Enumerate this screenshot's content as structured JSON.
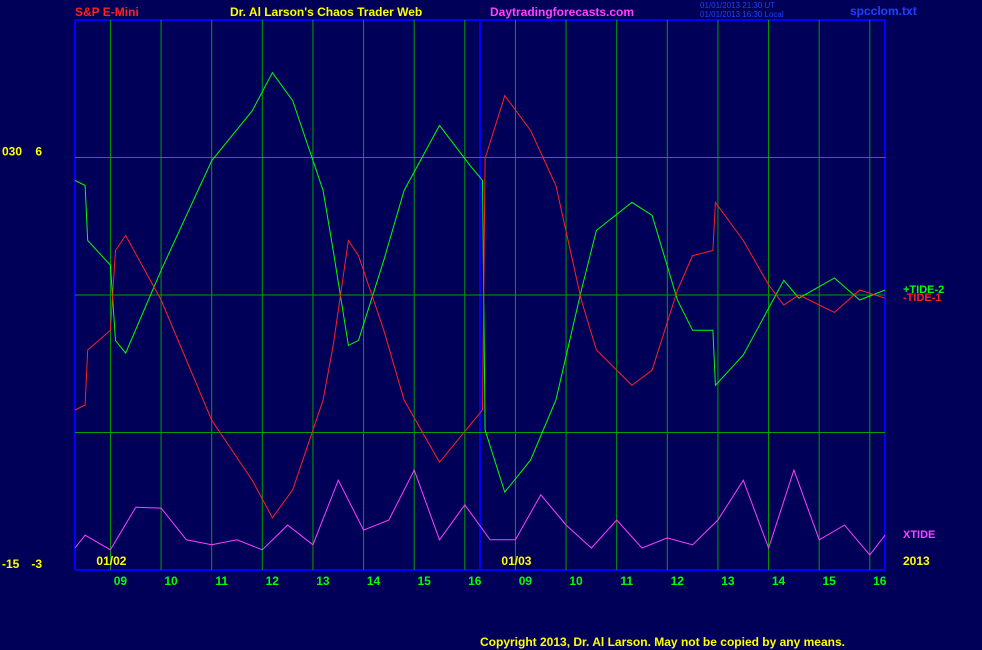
{
  "chart_data": {
    "type": "line",
    "symbol": "S&P E-Mini",
    "title": "Dr. Al Larson's Chaos Trader Web",
    "site": "Daytradingforecasts.com",
    "timestamps": [
      "01/01/2013 21:30 UT",
      "01/01/2013 16:30 Local"
    ],
    "file": "spcclom.txt",
    "copyright": "Copyright 2013, Dr. Al Larson. May not be copied by any means.",
    "year_label": "2013",
    "date_labels": [
      {
        "value": 0,
        "label": "01/02"
      },
      {
        "value": 8,
        "label": "01/03"
      }
    ],
    "xlim": [
      -0.7,
      15.3
    ],
    "xticks": [
      {
        "value": 0,
        "label": "09"
      },
      {
        "value": 1,
        "label": "10"
      },
      {
        "value": 2,
        "label": "11"
      },
      {
        "value": 3,
        "label": "12"
      },
      {
        "value": 4,
        "label": "13"
      },
      {
        "value": 5,
        "label": "14"
      },
      {
        "value": 6,
        "label": "15"
      },
      {
        "value": 7,
        "label": "16"
      },
      {
        "value": 8,
        "label": "09"
      },
      {
        "value": 9,
        "label": "10"
      },
      {
        "value": 10,
        "label": "11"
      },
      {
        "value": 11,
        "label": "12"
      },
      {
        "value": 12,
        "label": "13"
      },
      {
        "value": 13,
        "label": "14"
      },
      {
        "value": 14,
        "label": "15"
      },
      {
        "value": 15,
        "label": "16"
      }
    ],
    "ylim": [
      -3,
      9
    ],
    "yticks": [
      6,
      -3
    ],
    "ygrid": [
      0,
      3,
      6
    ],
    "y2lim": [
      -15,
      45
    ],
    "y2ticks": [
      {
        "value": 30,
        "label": "030"
      },
      -15
    ],
    "grid": true,
    "series": [
      {
        "name": "+TIDE-2",
        "color": "#00ff00",
        "x": [
          -0.7,
          -0.5,
          -0.45,
          0,
          0.1,
          0.3,
          1,
          2,
          2.8,
          3.2,
          3.6,
          4.2,
          4.4,
          4.7,
          4.9,
          5.4,
          5.8,
          6.5,
          7.1,
          7.35,
          7.4,
          7.79,
          8.3,
          8.8,
          9.3,
          9.6,
          10.3,
          10.7,
          11.2,
          11.5,
          11.9,
          11.95,
          12.5,
          13.0,
          13.3,
          13.6,
          14.3,
          14.8,
          15.3
        ],
        "values": [
          5.5,
          5.39,
          4.19,
          3.65,
          2.01,
          1.73,
          3.54,
          5.93,
          7.02,
          7.85,
          7.24,
          5.28,
          3.97,
          1.9,
          2.01,
          3.76,
          5.28,
          6.7,
          5.83,
          5.5,
          0.05,
          -1.3,
          -0.6,
          0.71,
          3.1,
          4.41,
          5.02,
          4.74,
          2.89,
          2.23,
          2.23,
          1.03,
          1.69,
          2.71,
          3.32,
          2.93,
          3.37,
          2.89,
          3.11
        ]
      },
      {
        "name": "-TIDE-1",
        "color": "#ff2020",
        "x": [
          -0.7,
          -0.5,
          -0.45,
          0,
          0.1,
          0.3,
          1,
          2,
          2.8,
          3.2,
          3.6,
          4.2,
          4.4,
          4.7,
          4.9,
          5.4,
          5.8,
          6.5,
          7.1,
          7.35,
          7.4,
          7.79,
          8.3,
          8.8,
          9.3,
          9.6,
          10.3,
          10.7,
          11.2,
          11.5,
          11.9,
          11.95,
          12.5,
          13.0,
          13.3,
          13.6,
          14.3,
          14.8,
          15.3
        ],
        "values": [
          0.49,
          0.6,
          1.8,
          2.23,
          3.97,
          4.3,
          2.89,
          0.27,
          -1.04,
          -1.86,
          -1.25,
          0.71,
          1.9,
          4.19,
          3.86,
          2.23,
          0.71,
          -0.65,
          0.16,
          0.49,
          5.98,
          7.35,
          6.59,
          5.39,
          2.89,
          1.8,
          1.03,
          1.36,
          3.1,
          3.86,
          3.97,
          5.02,
          4.19,
          3.22,
          2.78,
          3,
          2.62,
          3.11,
          2.93
        ]
      },
      {
        "name": "XTIDE",
        "color": "#ff40ff",
        "x": [
          -0.7,
          -0.5,
          0,
          0.5,
          1,
          1.5,
          2,
          2.5,
          3,
          3.5,
          4,
          4.5,
          5,
          5.5,
          6,
          6.5,
          7,
          7.5,
          8,
          8.5,
          9,
          9.5,
          10,
          10.5,
          11,
          11.5,
          12,
          12.5,
          13,
          13.5,
          14,
          14.5,
          15,
          15.3
        ],
        "values": [
          -2.52,
          -2.24,
          -2.56,
          -1.63,
          -1.65,
          -2.34,
          -2.45,
          -2.34,
          -2.56,
          -2.02,
          -2.45,
          -1.04,
          -2.13,
          -1.91,
          -0.82,
          -2.34,
          -1.58,
          -2.34,
          -2.34,
          -1.36,
          -2.02,
          -2.52,
          -1.91,
          -2.52,
          -2.3,
          -2.45,
          -1.91,
          -1.04,
          -2.52,
          -0.82,
          -2.34,
          -2.02,
          -2.67,
          -2.24
        ]
      }
    ]
  }
}
